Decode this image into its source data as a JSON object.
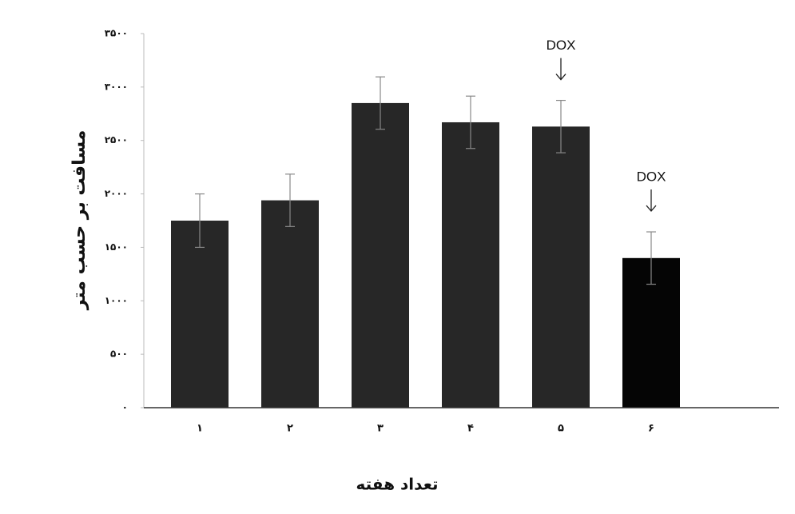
{
  "chart_data": {
    "type": "bar",
    "y_label": "مسافت بر حسب متر",
    "x_label": "تعداد هفته",
    "categories": [
      "۱",
      "۲",
      "۳",
      "۴",
      "۵",
      "۶"
    ],
    "values": [
      1750,
      1940,
      2850,
      2670,
      2630,
      1400
    ],
    "errors": [
      250,
      245,
      245,
      245,
      245,
      245
    ],
    "colors": [
      "#272727",
      "#272727",
      "#272727",
      "#272727",
      "#272727",
      "#050505"
    ],
    "ylim": [
      0,
      3500
    ],
    "yticks": [
      {
        "value": 0,
        "label": "۰"
      },
      {
        "value": 500,
        "label": "۵۰۰"
      },
      {
        "value": 1000,
        "label": "۱۰۰۰"
      },
      {
        "value": 1500,
        "label": "۱۵۰۰"
      },
      {
        "value": 2000,
        "label": "۲۰۰۰"
      },
      {
        "value": 2500,
        "label": "۲۵۰۰"
      },
      {
        "value": 3000,
        "label": "۳۰۰۰"
      },
      {
        "value": 3500,
        "label": "۳۵۰۰"
      }
    ],
    "annotations": [
      "DOX",
      "DOX"
    ]
  }
}
